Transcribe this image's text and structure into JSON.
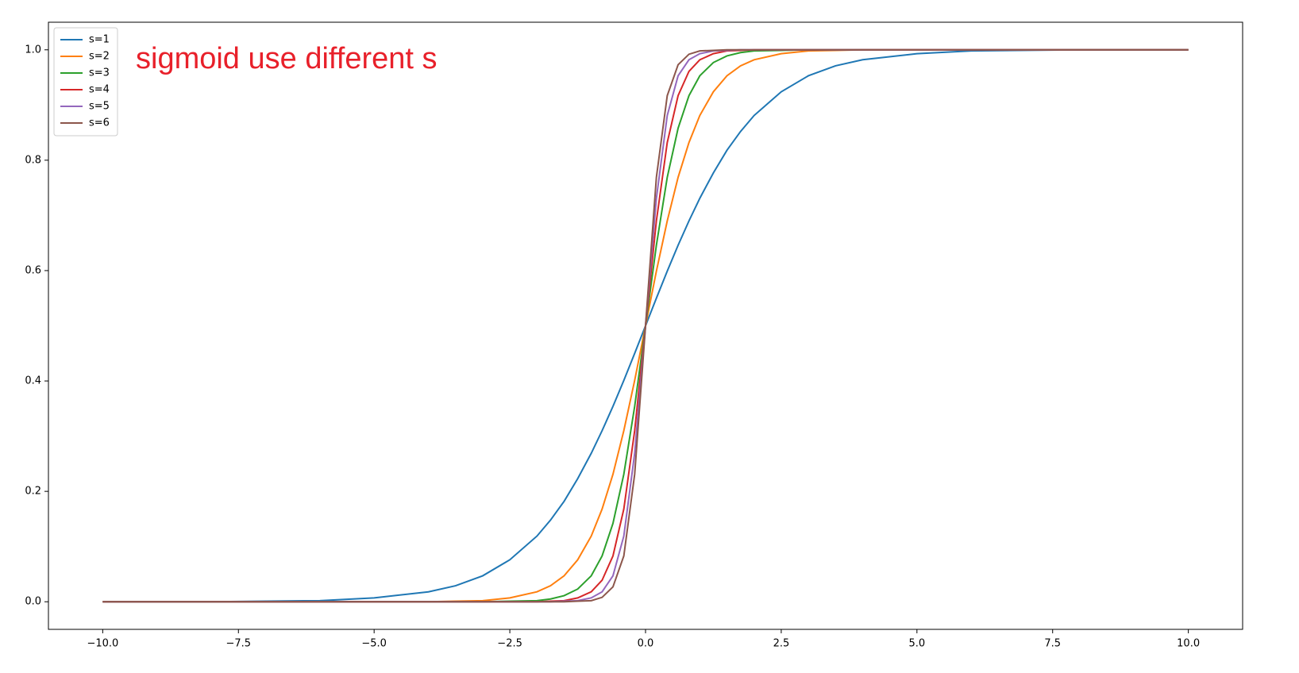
{
  "chart_data": {
    "type": "line",
    "annotation": "sigmoid use different s",
    "x": [
      -10,
      -8,
      -6,
      -5,
      -4,
      -3.5,
      -3,
      -2.5,
      -2,
      -1.75,
      -1.5,
      -1.25,
      -1,
      -0.8,
      -0.6,
      -0.4,
      -0.2,
      0,
      0.2,
      0.4,
      0.6,
      0.8,
      1,
      1.25,
      1.5,
      1.75,
      2,
      2.5,
      3,
      3.5,
      4,
      5,
      6,
      8,
      10
    ],
    "series": [
      {
        "name": "s=1",
        "color": "#1f77b4",
        "values": [
          0,
          0,
          0.002,
          0.007,
          0.018,
          0.029,
          0.047,
          0.076,
          0.119,
          0.148,
          0.182,
          0.223,
          0.269,
          0.31,
          0.354,
          0.401,
          0.45,
          0.5,
          0.55,
          0.599,
          0.646,
          0.69,
          0.731,
          0.777,
          0.818,
          0.852,
          0.881,
          0.924,
          0.953,
          0.971,
          0.982,
          0.993,
          0.998,
          1,
          1
        ]
      },
      {
        "name": "s=2",
        "color": "#ff7f0e",
        "values": [
          0,
          0,
          0,
          0,
          0,
          0.001,
          0.002,
          0.007,
          0.018,
          0.029,
          0.047,
          0.076,
          0.119,
          0.168,
          0.231,
          0.31,
          0.401,
          0.5,
          0.599,
          0.69,
          0.769,
          0.832,
          0.881,
          0.924,
          0.953,
          0.971,
          0.982,
          0.993,
          0.998,
          0.999,
          1,
          1,
          1,
          1,
          1
        ]
      },
      {
        "name": "s=3",
        "color": "#2ca02c",
        "values": [
          0,
          0,
          0,
          0,
          0,
          0,
          0,
          0.001,
          0.002,
          0.005,
          0.011,
          0.023,
          0.047,
          0.083,
          0.142,
          0.231,
          0.354,
          0.5,
          0.646,
          0.769,
          0.858,
          0.917,
          0.953,
          0.977,
          0.989,
          0.995,
          0.998,
          0.999,
          1,
          1,
          1,
          1,
          1,
          1,
          1
        ]
      },
      {
        "name": "s=4",
        "color": "#d62728",
        "values": [
          0,
          0,
          0,
          0,
          0,
          0,
          0,
          0,
          0,
          0.001,
          0.002,
          0.007,
          0.018,
          0.039,
          0.083,
          0.168,
          0.31,
          0.5,
          0.69,
          0.832,
          0.917,
          0.961,
          0.982,
          0.993,
          0.998,
          0.999,
          1,
          1,
          1,
          1,
          1,
          1,
          1,
          1,
          1
        ]
      },
      {
        "name": "s=5",
        "color": "#9467bd",
        "values": [
          0,
          0,
          0,
          0,
          0,
          0,
          0,
          0,
          0,
          0,
          0.001,
          0.002,
          0.007,
          0.018,
          0.047,
          0.119,
          0.269,
          0.5,
          0.731,
          0.881,
          0.953,
          0.982,
          0.993,
          0.998,
          0.999,
          1,
          1,
          1,
          1,
          1,
          1,
          1,
          1,
          1,
          1
        ]
      },
      {
        "name": "s=6",
        "color": "#8c564b",
        "values": [
          0,
          0,
          0,
          0,
          0,
          0,
          0,
          0,
          0,
          0,
          0,
          0.001,
          0.002,
          0.008,
          0.027,
          0.083,
          0.231,
          0.5,
          0.769,
          0.917,
          0.973,
          0.992,
          0.998,
          0.999,
          1,
          1,
          1,
          1,
          1,
          1,
          1,
          1,
          1,
          1,
          1
        ]
      }
    ],
    "xlim": [
      -11,
      11
    ],
    "ylim": [
      -0.05,
      1.05
    ],
    "xticks": [
      {
        "value": -10,
        "label": "−10.0"
      },
      {
        "value": -7.5,
        "label": "−7.5"
      },
      {
        "value": -5,
        "label": "−5.0"
      },
      {
        "value": -2.5,
        "label": "−2.5"
      },
      {
        "value": 0,
        "label": "0.0"
      },
      2.5,
      {
        "value": 5,
        "label": "5.0"
      },
      7.5,
      {
        "value": 10,
        "label": "10.0"
      }
    ],
    "yticks": [
      {
        "value": 0,
        "label": "0.0"
      },
      0.2,
      0.4,
      0.6,
      0.8,
      {
        "value": 1,
        "label": "1.0"
      }
    ],
    "legend": "upper left",
    "grid": false
  }
}
